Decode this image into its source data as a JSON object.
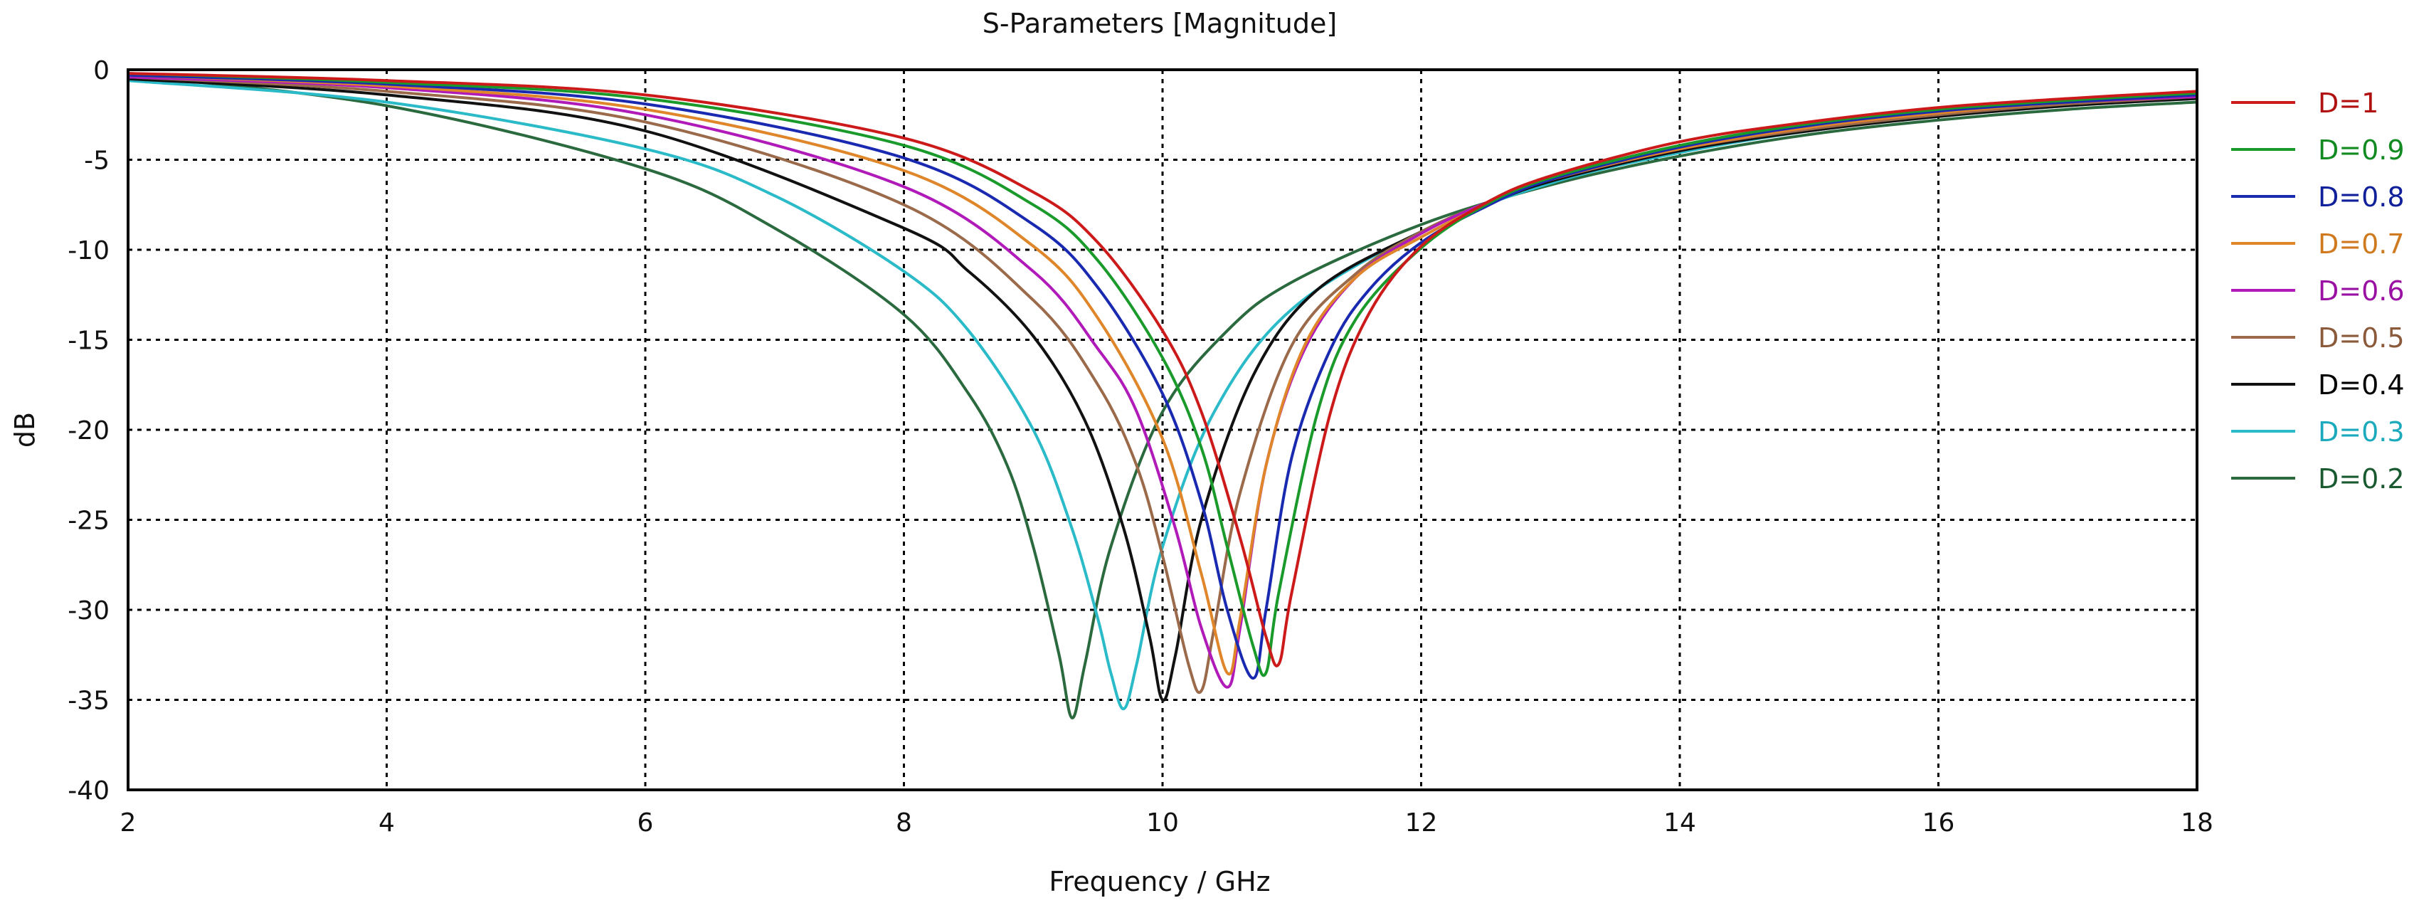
{
  "chart_data": {
    "type": "line",
    "title": "S-Parameters [Magnitude]",
    "xlabel": "Frequency / GHz",
    "ylabel": "dB",
    "xlim": [
      2,
      18
    ],
    "ylim": [
      -40,
      0
    ],
    "grid": true,
    "legend_position": "right",
    "x_ticks": [
      "2",
      "4",
      "6",
      "8",
      "10",
      "12",
      "14",
      "16",
      "18"
    ],
    "y_ticks": [
      "0",
      "-5",
      "-10",
      "-15",
      "-20",
      "-25",
      "-30",
      "-35",
      "-40"
    ],
    "series": [
      {
        "name": "D=1",
        "color": "#cc1a1a",
        "label_color": "#b01010",
        "x": [
          2,
          4,
          6,
          8,
          9,
          9.5,
          10,
          10.3,
          10.6,
          10.8,
          10.9,
          11.0,
          11.3,
          11.6,
          12,
          12.5,
          13,
          14,
          15,
          16,
          17,
          18
        ],
        "y": [
          -0.2,
          -0.6,
          -1.4,
          -3.8,
          -6.8,
          -9.6,
          -14.5,
          -19,
          -26,
          -31.5,
          -33,
          -29,
          -19,
          -13.5,
          -9.8,
          -7.4,
          -5.9,
          -4.0,
          -2.9,
          -2.1,
          -1.6,
          -1.2
        ]
      },
      {
        "name": "D=0.9",
        "color": "#1a9a2a",
        "label_color": "#128a22",
        "x": [
          2,
          4,
          6,
          8,
          9,
          9.5,
          10,
          10.3,
          10.5,
          10.7,
          10.8,
          10.9,
          11.2,
          11.5,
          12,
          12.5,
          13,
          14,
          15,
          16,
          17,
          18
        ],
        "y": [
          -0.2,
          -0.7,
          -1.6,
          -4.2,
          -7.5,
          -10.6,
          -16,
          -21,
          -26.5,
          -32,
          -33.5,
          -29,
          -19,
          -13.8,
          -9.9,
          -7.5,
          -6.0,
          -4.2,
          -3.0,
          -2.2,
          -1.7,
          -1.3
        ]
      },
      {
        "name": "D=0.8",
        "color": "#1a2ab0",
        "label_color": "#10209a",
        "x": [
          2,
          4,
          6,
          8,
          9,
          9.5,
          10,
          10.3,
          10.5,
          10.7,
          10.8,
          11.0,
          11.3,
          11.6,
          12,
          12.5,
          13,
          14,
          15,
          16,
          17,
          18
        ],
        "y": [
          -0.3,
          -0.8,
          -1.9,
          -4.9,
          -8.6,
          -12.1,
          -18,
          -24,
          -30,
          -33.8,
          -30,
          -21.5,
          -15.5,
          -12.2,
          -9.6,
          -7.6,
          -6.1,
          -4.3,
          -3.1,
          -2.3,
          -1.8,
          -1.4
        ]
      },
      {
        "name": "D=0.7",
        "color": "#e0862a",
        "label_color": "#d07a20",
        "x": [
          2,
          4,
          6,
          8,
          9,
          9.5,
          10,
          10.3,
          10.5,
          10.6,
          10.8,
          11.1,
          11.5,
          12,
          12.5,
          13,
          14,
          15,
          16,
          17,
          18
        ],
        "y": [
          -0.3,
          -0.9,
          -2.2,
          -5.6,
          -9.8,
          -13.8,
          -20.5,
          -28,
          -33.5,
          -30.5,
          -22,
          -15.3,
          -11.5,
          -9.3,
          -7.5,
          -6.1,
          -4.4,
          -3.2,
          -2.4,
          -1.8,
          -1.4
        ]
      },
      {
        "name": "D=0.6",
        "color": "#b01ab8",
        "label_color": "#9a10a2",
        "x": [
          2,
          4,
          6,
          8,
          9,
          9.5,
          9.8,
          10.1,
          10.3,
          10.5,
          10.6,
          10.8,
          11.1,
          11.5,
          12,
          12.5,
          13,
          14,
          15,
          16,
          17,
          18
        ],
        "y": [
          -0.4,
          -1.0,
          -2.5,
          -6.5,
          -11.2,
          -15.5,
          -19,
          -25.5,
          -31,
          -34.3,
          -31,
          -22,
          -15.5,
          -11.5,
          -9.1,
          -7.4,
          -6.1,
          -4.4,
          -3.2,
          -2.4,
          -1.8,
          -1.5
        ]
      },
      {
        "name": "D=0.5",
        "color": "#9a6a4a",
        "label_color": "#8a5a3a",
        "x": [
          2,
          4,
          6,
          8,
          9,
          9.5,
          9.8,
          10.0,
          10.2,
          10.3,
          10.4,
          10.6,
          11.0,
          11.5,
          12,
          12.5,
          13,
          14,
          15,
          16,
          17,
          18
        ],
        "y": [
          -0.4,
          -1.2,
          -2.9,
          -7.5,
          -12.8,
          -17.5,
          -22,
          -27,
          -33,
          -34.5,
          -31,
          -23.5,
          -15.3,
          -11.3,
          -9.0,
          -7.4,
          -6.1,
          -4.4,
          -3.3,
          -2.5,
          -1.9,
          -1.5
        ]
      },
      {
        "name": "D=0.4",
        "color": "#111111",
        "label_color": "#000000",
        "x": [
          2,
          4,
          6,
          8,
          8.5,
          9,
          9.4,
          9.7,
          9.9,
          10.0,
          10.1,
          10.3,
          10.7,
          11.2,
          12,
          12.5,
          13,
          14,
          15,
          16,
          17,
          18
        ],
        "y": [
          -0.5,
          -1.4,
          -3.4,
          -8.8,
          -11.2,
          -14.8,
          -19.5,
          -25.5,
          -31.5,
          -35,
          -32.5,
          -25,
          -17,
          -12.2,
          -9.0,
          -7.5,
          -6.2,
          -4.5,
          -3.4,
          -2.6,
          -2.0,
          -1.6
        ]
      },
      {
        "name": "D=0.3",
        "color": "#2abac8",
        "label_color": "#1aaabb",
        "x": [
          2,
          4,
          6,
          7,
          8,
          8.5,
          9,
          9.3,
          9.5,
          9.6,
          9.7,
          9.8,
          10.0,
          10.4,
          11,
          12,
          13,
          14,
          15,
          16,
          17,
          18
        ],
        "y": [
          -0.6,
          -1.8,
          -4.4,
          -7.0,
          -11.2,
          -14.5,
          -20,
          -25.5,
          -30.5,
          -33.5,
          -35.5,
          -33,
          -26.5,
          -19,
          -13.3,
          -9.0,
          -6.3,
          -4.6,
          -3.4,
          -2.6,
          -2.0,
          -1.6
        ]
      },
      {
        "name": "D=0.2",
        "color": "#2a6a3e",
        "label_color": "#1a5a30",
        "x": [
          2,
          4,
          6,
          7,
          8,
          8.5,
          8.8,
          9.0,
          9.2,
          9.3,
          9.4,
          9.6,
          10.0,
          10.5,
          11,
          12,
          13,
          14,
          15,
          16,
          17,
          18
        ],
        "y": [
          -0.3,
          -2.0,
          -5.5,
          -8.8,
          -13.6,
          -18,
          -22,
          -26.5,
          -32.5,
          -36,
          -33,
          -26.5,
          -19,
          -14.5,
          -11.8,
          -8.6,
          -6.4,
          -4.8,
          -3.6,
          -2.8,
          -2.2,
          -1.8
        ]
      }
    ]
  }
}
